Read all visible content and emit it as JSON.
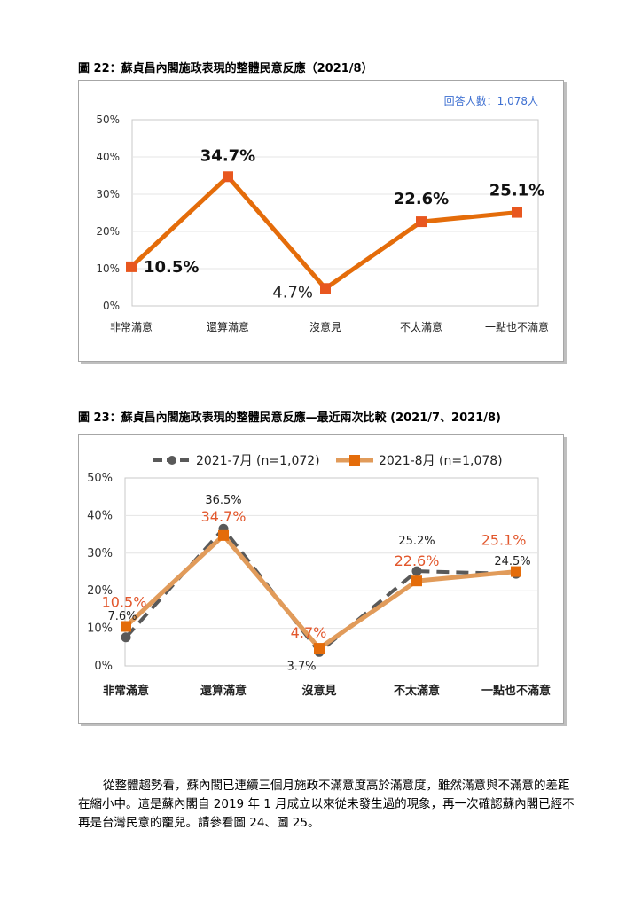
{
  "figures": {
    "fig22": {
      "caption": "圖 22：蘇貞昌內閣施政表現的整體民意反應（2021/8）",
      "respondents": "回答人數：1,078人"
    },
    "fig23": {
      "caption": "圖 23：蘇貞昌內閣施政表現的整體民意反應—最近兩次比較  (2021/7、2021/8)"
    }
  },
  "chart_data": [
    {
      "type": "line",
      "categories": [
        "非常滿意",
        "還算滿意",
        "沒意見",
        "不太滿意",
        "一點也不滿意"
      ],
      "series": [
        {
          "values": [
            10.5,
            34.7,
            4.7,
            22.6,
            25.1
          ],
          "labels": [
            "10.5%",
            "34.7%",
            "4.7%",
            "22.6%",
            "25.1%"
          ],
          "color": "#e46c0a"
        }
      ],
      "ylim": [
        0,
        50
      ],
      "yticks": [
        "0%",
        "10%",
        "20%",
        "30%",
        "40%",
        "50%"
      ],
      "grid": true,
      "legend": "none"
    },
    {
      "type": "line",
      "categories": [
        "非常滿意",
        "還算滿意",
        "沒意見",
        "不太滿意",
        "一點也不滿意"
      ],
      "series": [
        {
          "name": "2021-7月 (n=1,072)",
          "values": [
            7.6,
            36.5,
            3.7,
            25.2,
            24.5
          ],
          "labels": [
            "7.6%",
            "36.5%",
            "3.7%",
            "25.2%",
            "24.5%"
          ],
          "color": "#595959",
          "dashed": true,
          "marker": "circle"
        },
        {
          "name": "2021-8月 (n=1,078)",
          "values": [
            10.5,
            34.7,
            4.7,
            22.6,
            25.1
          ],
          "labels": [
            "10.5%",
            "34.7%",
            "4.7%",
            "22.6%",
            "25.1%"
          ],
          "color": "#e46c0a",
          "line_color": "#e19b5a",
          "marker": "square"
        }
      ],
      "ylim": [
        0,
        50
      ],
      "yticks": [
        "0%",
        "10%",
        "20%",
        "30%",
        "40%",
        "50%"
      ],
      "grid": true,
      "legend": "top"
    }
  ],
  "body_text": "從整體趨勢看，蘇內閣已連續三個月施政不滿意度高於滿意度，雖然滿意與不滿意的差距在縮小中。這是蘇內閣自 2019 年 1 月成立以來從未發生過的現象，再一次確認蘇內閣已經不再是台灣民意的寵兒。請參看圖 24、圖 25。"
}
